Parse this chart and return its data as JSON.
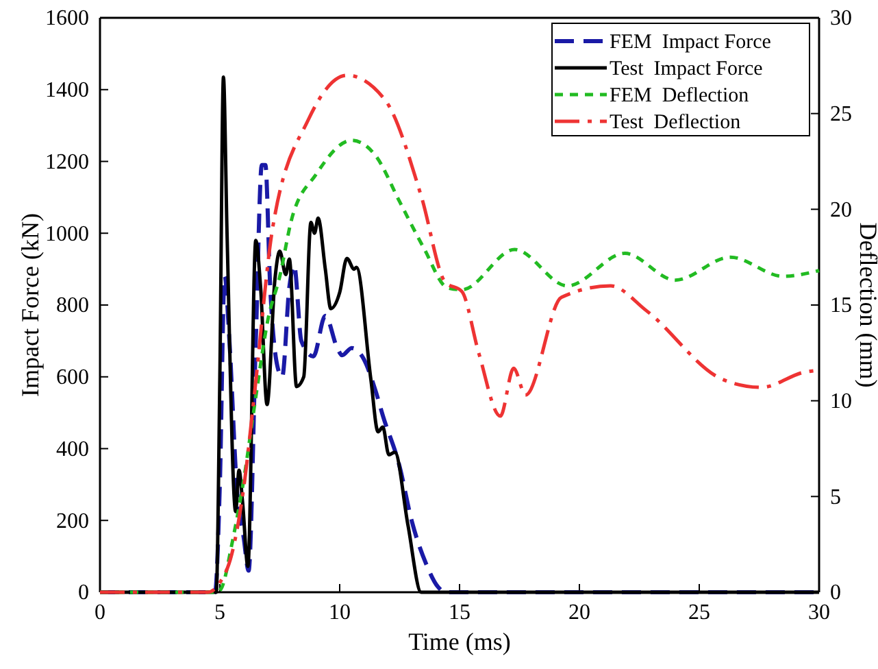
{
  "chart_data": {
    "type": "line",
    "xlabel": "Time (ms)",
    "ylabel": "Impact Force (kN)",
    "y2label": "Deflection (mm)",
    "xlim": [
      0,
      30
    ],
    "xticks": [
      0,
      5,
      10,
      15,
      20,
      25,
      30
    ],
    "ylim": [
      0,
      1600
    ],
    "yticks": [
      0,
      200,
      400,
      600,
      800,
      1000,
      1200,
      1400,
      1600
    ],
    "y2lim": [
      0,
      30
    ],
    "y2ticks": [
      0,
      5,
      10,
      15,
      20,
      25,
      30
    ],
    "grid": false,
    "legend": "top right",
    "marker": "none",
    "series": [
      {
        "name": "FEM  Impact Force",
        "color": "#1a1aa6",
        "line_style": "dashed",
        "x": [
          0,
          4.8,
          5.0,
          5.2,
          5.4,
          5.7,
          6.0,
          6.2,
          6.5,
          6.75,
          6.9,
          7.1,
          7.4,
          7.6,
          7.9,
          8.1,
          8.4,
          8.9,
          9.4,
          9.9,
          10.1,
          10.5,
          11.0,
          11.5,
          11.8,
          12.5,
          13.0,
          13.6,
          14.1,
          14.4,
          30
        ],
        "values": [
          0,
          0,
          300,
          880,
          700,
          300,
          150,
          60,
          700,
          1190,
          1190,
          850,
          630,
          600,
          850,
          910,
          700,
          657,
          770,
          680,
          660,
          680,
          650,
          560,
          492,
          350,
          200,
          80,
          15,
          0,
          0
        ]
      },
      {
        "name": "Test  Impact Force",
        "color": "#000000",
        "line_style": "solid",
        "x": [
          0,
          4.85,
          5.0,
          5.15,
          5.3,
          5.66,
          5.8,
          5.95,
          6.17,
          6.5,
          6.7,
          6.97,
          7.3,
          7.5,
          7.75,
          7.9,
          8.2,
          8.5,
          8.8,
          8.95,
          9.1,
          9.4,
          9.63,
          10.0,
          10.3,
          10.6,
          10.7,
          11.3,
          11.6,
          11.8,
          12.05,
          12.3,
          12.85,
          13.4,
          30
        ],
        "values": [
          0,
          0,
          600,
          1435,
          1000,
          225,
          340,
          250,
          72,
          980,
          850,
          523,
          873,
          950,
          885,
          928,
          573,
          600,
          1030,
          1000,
          1042,
          900,
          790,
          835,
          930,
          900,
          905,
          593,
          447,
          460,
          383,
          390,
          186,
          0,
          0
        ]
      },
      {
        "name": "FEM  Deflection",
        "color": "#22bb22",
        "line_style": "dotted",
        "axis": "y2",
        "x": [
          0,
          4.9,
          5.1,
          5.5,
          6.0,
          6.5,
          7.0,
          7.5,
          8.0,
          9.0,
          10.5,
          11.5,
          12.5,
          13.5,
          14.5,
          15.1,
          17.3,
          19.5,
          21.9,
          24.0,
          26.3,
          28.5,
          30
        ],
        "values": [
          0,
          0,
          0.3,
          2.5,
          5.9,
          10.2,
          14.2,
          16.5,
          19.5,
          21.8,
          23.6,
          22.8,
          20.4,
          18.0,
          15.9,
          15.8,
          17.9,
          16.0,
          17.7,
          16.3,
          17.5,
          16.5,
          16.8
        ]
      },
      {
        "name": "Test  Deflection",
        "color": "#ee3333",
        "line_style": "dashdot",
        "axis": "y2",
        "x": [
          0,
          4.5,
          5.0,
          5.5,
          6.0,
          6.43,
          7.2,
          8.7,
          10.3,
          11.9,
          13.4,
          14.4,
          15.1,
          15.8,
          16.7,
          17.26,
          17.75,
          19.25,
          21.3,
          22.8,
          26.0,
          27.6,
          29.4,
          30
        ],
        "values": [
          0,
          0,
          0.5,
          2.0,
          5.5,
          10.2,
          19.0,
          24.7,
          27.0,
          25.7,
          20.7,
          16.2,
          15.7,
          12.5,
          9.2,
          11.7,
          10.3,
          15.4,
          16.0,
          14.7,
          11.1,
          10.7,
          11.5,
          11.6
        ]
      }
    ]
  }
}
